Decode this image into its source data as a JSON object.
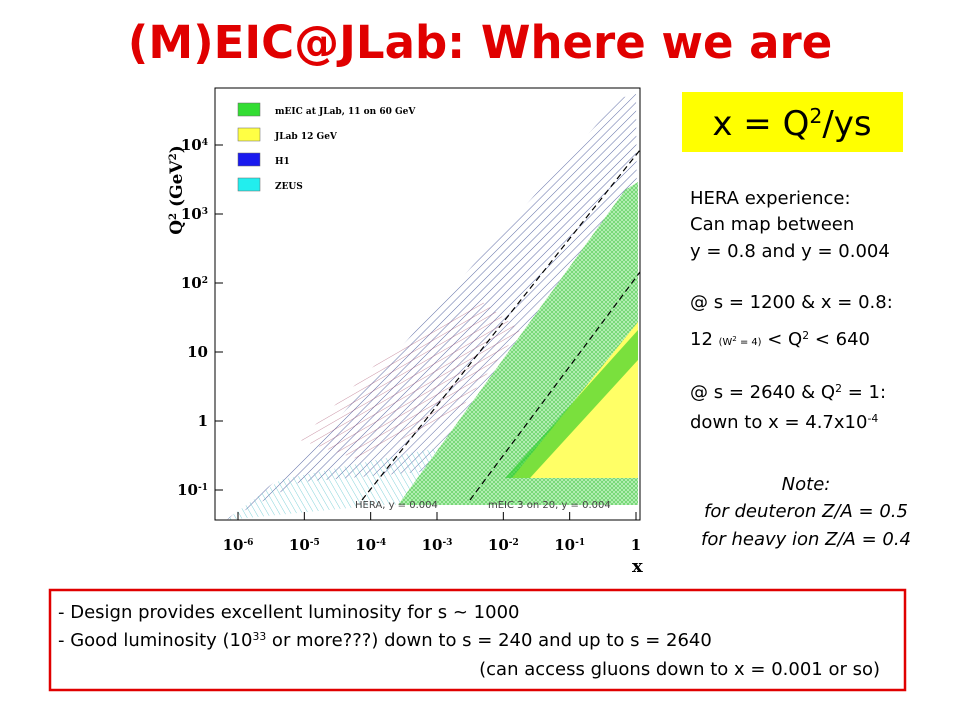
{
  "title": "(M)EIC@JLab: Where we are",
  "formula": [
    "x = Q",
    {
      "sup": "2"
    },
    "/ys"
  ],
  "plot": {
    "y_label": [
      "Q",
      {
        "sup": "2"
      },
      " (GeV",
      {
        "sup": "2"
      },
      ")"
    ],
    "x_label": "x",
    "x_ticks": [
      [
        "10",
        {
          "sup": "-6"
        }
      ],
      [
        "10",
        {
          "sup": "-5"
        }
      ],
      [
        "10",
        {
          "sup": "-4"
        }
      ],
      [
        "10",
        {
          "sup": "-3"
        }
      ],
      [
        "10",
        {
          "sup": "-2"
        }
      ],
      [
        "10",
        {
          "sup": "-1"
        }
      ],
      [
        "1"
      ]
    ],
    "y_ticks": [
      [
        "10",
        {
          "sup": "-1"
        }
      ],
      [
        "1"
      ],
      [
        "10"
      ],
      [
        "10",
        {
          "sup": "2"
        }
      ],
      [
        "10",
        {
          "sup": "3"
        }
      ],
      [
        "10",
        {
          "sup": "4"
        }
      ]
    ],
    "legend": [
      {
        "label": "mEIC at JLab, 11 on 60 GeV",
        "color": "#33dd33"
      },
      {
        "label": "JLab 12 GeV",
        "color": "#ffff44"
      },
      {
        "label": "H1",
        "color": "#1a1aee"
      },
      {
        "label": "ZEUS",
        "color": "#22eeee"
      }
    ],
    "annotations": [
      "HERA, y = 0.004",
      "mEIC 3 on 20, y = 0.004"
    ]
  },
  "hera_notes": [
    [
      "HERA experience:"
    ],
    [
      "Can map between"
    ],
    [
      "y = 0.8 and y = 0.004"
    ],
    [
      "@ s = 1200 & x = 0.8:"
    ],
    [
      "12 ",
      {
        "small": "(W"
      },
      {
        "smallsup": "2"
      },
      {
        "small": " = 4)"
      },
      "  < Q",
      {
        "sup": "2"
      },
      " < 640"
    ],
    [
      "@ s = 2640 & Q",
      {
        "sup": "2"
      },
      " = 1:"
    ],
    [
      "down to x = 4.7x10",
      {
        "sup": "-4"
      }
    ]
  ],
  "note": [
    "Note:",
    "for deuteron  Z/A = 0.5",
    "for heavy ion Z/A = 0.4"
  ],
  "summary": [
    [
      "- Design provides excellent luminosity for s ~ 1000"
    ],
    [
      "- Good luminosity (10",
      {
        "sup": "33"
      },
      " or more???) down to s = 240 and up to s = 2640"
    ],
    [
      "(can access gluons down to x = 0.001 or so)"
    ]
  ]
}
